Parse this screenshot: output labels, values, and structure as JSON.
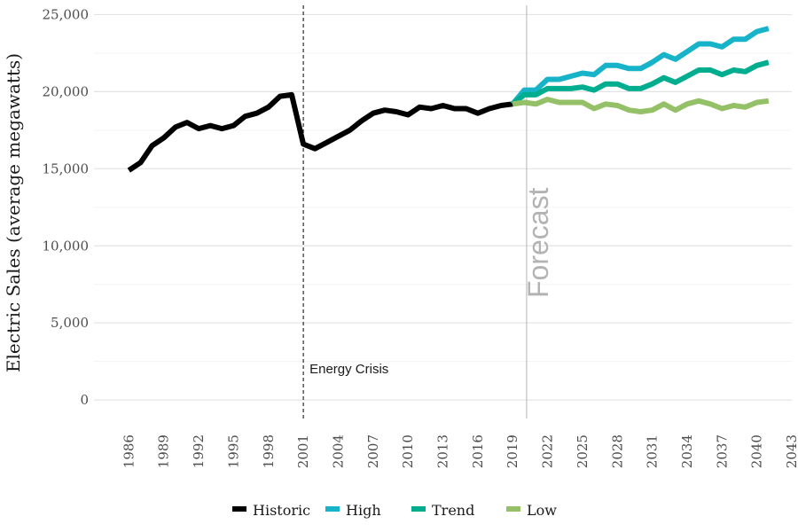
{
  "chart_data": {
    "type": "line",
    "ylabel": "Electric Sales (average megawatts)",
    "xlabel": "",
    "xlim": [
      1983,
      2043
    ],
    "ylim": [
      -1200,
      25600
    ],
    "x_ticks": [
      1986,
      1989,
      1992,
      1995,
      1998,
      2001,
      2004,
      2007,
      2010,
      2013,
      2016,
      2019,
      2022,
      2025,
      2028,
      2031,
      2034,
      2037,
      2040,
      2043
    ],
    "y_ticks": [
      0,
      5000,
      10000,
      15000,
      20000,
      25000
    ],
    "y_tick_labels": [
      "0",
      "5,000",
      "10,000",
      "15,000",
      "20,000",
      "25,000"
    ],
    "grid": true,
    "legend_position": "bottom",
    "series": [
      {
        "name": "Historic",
        "color": "#000000",
        "x": [
          1986,
          1987,
          1988,
          1989,
          1990,
          1991,
          1992,
          1993,
          1994,
          1995,
          1996,
          1997,
          1998,
          1999,
          2000,
          2001,
          2002,
          2003,
          2004,
          2005,
          2006,
          2007,
          2008,
          2009,
          2010,
          2011,
          2012,
          2013,
          2014,
          2015,
          2016,
          2017,
          2018,
          2019
        ],
        "y": [
          14900,
          15400,
          16500,
          17000,
          17700,
          18000,
          17600,
          17800,
          17600,
          17800,
          18400,
          18600,
          19000,
          19700,
          19800,
          16600,
          16300,
          16700,
          17100,
          17500,
          18100,
          18600,
          18800,
          18700,
          18500,
          19000,
          18900,
          19100,
          18900,
          18900,
          18600,
          18900,
          19100,
          19200
        ]
      },
      {
        "name": "High",
        "color": "#17b3c8",
        "x": [
          2019,
          2020,
          2021,
          2022,
          2023,
          2024,
          2025,
          2026,
          2027,
          2028,
          2029,
          2030,
          2031,
          2032,
          2033,
          2034,
          2035,
          2036,
          2037,
          2038,
          2039,
          2040,
          2041
        ],
        "y": [
          19200,
          20100,
          20100,
          20800,
          20800,
          21000,
          21200,
          21100,
          21700,
          21700,
          21500,
          21500,
          21900,
          22400,
          22100,
          22600,
          23100,
          23100,
          22900,
          23400,
          23400,
          23900,
          24100
        ]
      },
      {
        "name": "Trend",
        "color": "#00ad8f",
        "x": [
          2019,
          2020,
          2021,
          2022,
          2023,
          2024,
          2025,
          2026,
          2027,
          2028,
          2029,
          2030,
          2031,
          2032,
          2033,
          2034,
          2035,
          2036,
          2037,
          2038,
          2039,
          2040,
          2041
        ],
        "y": [
          19200,
          19800,
          19800,
          20200,
          20200,
          20200,
          20300,
          20100,
          20500,
          20500,
          20200,
          20200,
          20500,
          20900,
          20600,
          21000,
          21400,
          21400,
          21100,
          21400,
          21300,
          21700,
          21900
        ]
      },
      {
        "name": "Low",
        "color": "#94c167",
        "x": [
          2019,
          2020,
          2021,
          2022,
          2023,
          2024,
          2025,
          2026,
          2027,
          2028,
          2029,
          2030,
          2031,
          2032,
          2033,
          2034,
          2035,
          2036,
          2037,
          2038,
          2039,
          2040,
          2041
        ],
        "y": [
          19200,
          19300,
          19200,
          19500,
          19300,
          19300,
          19300,
          18900,
          19200,
          19100,
          18800,
          18700,
          18800,
          19200,
          18800,
          19200,
          19400,
          19200,
          18900,
          19100,
          19000,
          19300,
          19400
        ]
      }
    ],
    "annotations": [
      {
        "label": "Energy Crisis",
        "x": 2001,
        "style": "dashed"
      },
      {
        "label": "Forecast",
        "x": 2020.2,
        "style": "solid"
      }
    ]
  }
}
